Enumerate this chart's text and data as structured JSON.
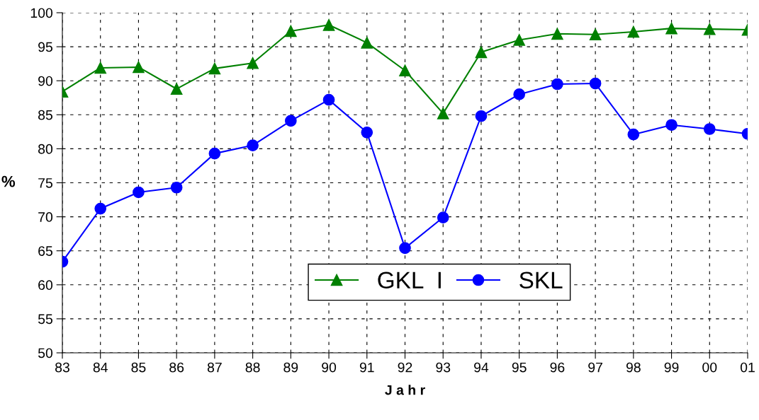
{
  "chart_data": {
    "type": "line",
    "xlabel": "J a h r",
    "ylabel": "%",
    "categories": [
      "83",
      "84",
      "85",
      "86",
      "87",
      "88",
      "89",
      "90",
      "91",
      "92",
      "93",
      "94",
      "95",
      "96",
      "97",
      "98",
      "99",
      "00",
      "01"
    ],
    "series": [
      {
        "name": "GKL  I",
        "color": "#008000",
        "marker": "triangle",
        "values": [
          88.4,
          91.9,
          92.0,
          88.8,
          91.8,
          92.6,
          97.3,
          98.2,
          95.6,
          91.5,
          85.2,
          94.2,
          96.0,
          96.9,
          96.8,
          97.2,
          97.7,
          97.6,
          97.5
        ]
      },
      {
        "name": "SKL",
        "color": "#0000ff",
        "marker": "circle",
        "values": [
          63.4,
          71.2,
          73.6,
          74.3,
          79.3,
          80.5,
          84.1,
          87.2,
          82.4,
          65.4,
          69.9,
          84.8,
          88.0,
          89.5,
          89.6,
          82.1,
          83.5,
          82.9,
          82.2
        ]
      }
    ],
    "ylim": [
      50,
      100
    ],
    "yticks": [
      50,
      55,
      60,
      65,
      70,
      75,
      80,
      85,
      90,
      95,
      100
    ],
    "grid": true,
    "legend": "bottom",
    "line_style": "solid"
  }
}
